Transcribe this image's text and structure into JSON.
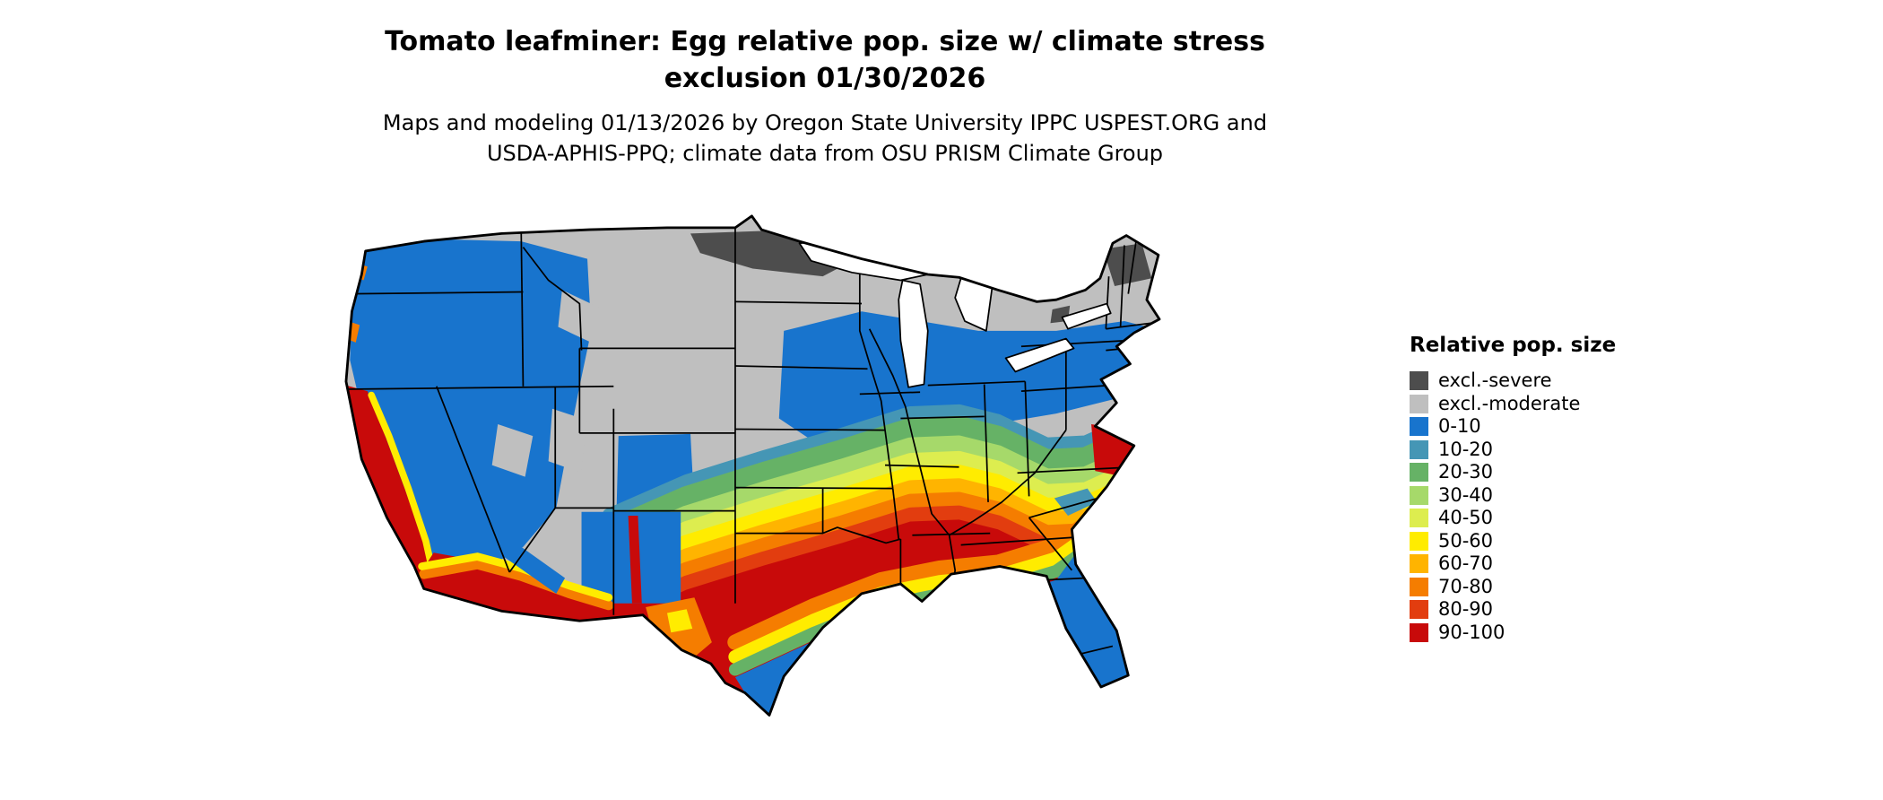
{
  "title": {
    "line1": "Tomato leafminer: Egg relative pop. size w/ climate stress",
    "line2": "exclusion 01/30/2026"
  },
  "subtitle": {
    "line1": "Maps and modeling 01/13/2026 by Oregon State University IPPC USPEST.ORG and",
    "line2": "USDA-APHIS-PPQ; climate data from OSU PRISM Climate Group"
  },
  "map": {
    "area": "Continental United States",
    "type": "raster choropleth with state borders",
    "state_border_color": "#000000",
    "water_color": "#ffffff",
    "background": "#ffffff"
  },
  "legend": {
    "title": "Relative pop. size",
    "items": [
      {
        "label": "excl.-severe",
        "color": "#4d4d4d"
      },
      {
        "label": "excl.-moderate",
        "color": "#bfbfbf"
      },
      {
        "label": "0-10",
        "color": "#1874cd"
      },
      {
        "label": "10-20",
        "color": "#4596b5"
      },
      {
        "label": "20-30",
        "color": "#66b266"
      },
      {
        "label": "30-40",
        "color": "#a6d96a"
      },
      {
        "label": "40-50",
        "color": "#dded4f"
      },
      {
        "label": "50-60",
        "color": "#ffec00"
      },
      {
        "label": "60-70",
        "color": "#ffb400"
      },
      {
        "label": "70-80",
        "color": "#f57d00"
      },
      {
        "label": "80-90",
        "color": "#e23d0f"
      },
      {
        "label": "90-100",
        "color": "#c80a0a"
      }
    ]
  }
}
